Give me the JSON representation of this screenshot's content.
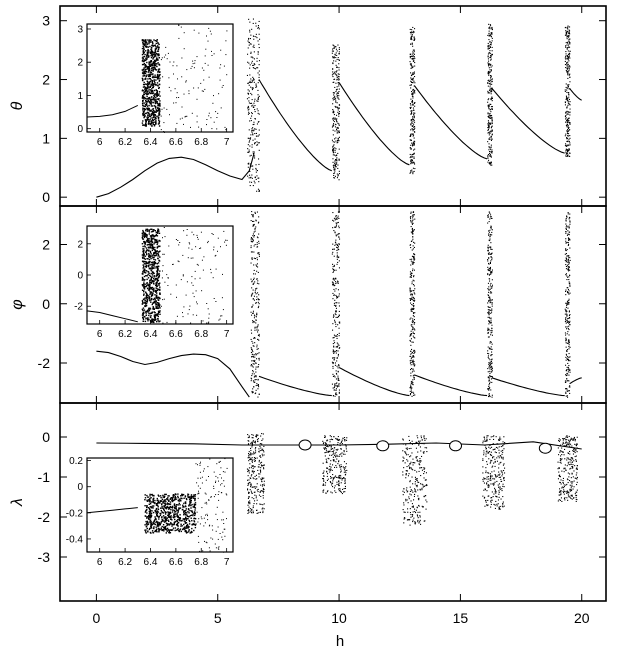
{
  "chart_data": {
    "type": "scatter",
    "xlabel": "h",
    "x_ticks": [
      "0",
      "5",
      "10",
      "15",
      "20"
    ],
    "xlim": [
      -1.5,
      21
    ],
    "grid": false,
    "panels": [
      {
        "id": "theta",
        "ylabel": "θ",
        "ylim": [
          -0.15,
          3.25
        ],
        "y_ticks": [
          "0",
          "1",
          "2",
          "3"
        ],
        "curve": [
          [
            0,
            0
          ],
          [
            0.5,
            0.06
          ],
          [
            1,
            0.17
          ],
          [
            1.5,
            0.3
          ],
          [
            2,
            0.45
          ],
          [
            2.5,
            0.58
          ],
          [
            3,
            0.66
          ],
          [
            3.5,
            0.68
          ],
          [
            4,
            0.64
          ],
          [
            4.5,
            0.55
          ],
          [
            5,
            0.45
          ],
          [
            5.5,
            0.36
          ],
          [
            6,
            0.3
          ],
          [
            6.3,
            0.45
          ],
          [
            6.5,
            0.75
          ]
        ],
        "chaotic_bands": [
          {
            "x": [
              6.2,
              6.7
            ],
            "y": [
              0.1,
              3.05
            ]
          },
          {
            "x": [
              9.7,
              10.0
            ],
            "y": [
              0.3,
              2.6
            ]
          },
          {
            "x": [
              12.9,
              13.1
            ],
            "y": [
              0.4,
              2.9
            ]
          },
          {
            "x": [
              16.1,
              16.3
            ],
            "y": [
              0.55,
              2.95
            ]
          },
          {
            "x": [
              19.3,
              19.5
            ],
            "y": [
              0.7,
              2.95
            ]
          }
        ],
        "branches": [
          {
            "x": [
              6.7,
              9.7
            ],
            "y_start": 2.0,
            "y_end": 0.45
          },
          {
            "x": [
              10.0,
              12.9
            ],
            "y_start": 1.95,
            "y_end": 0.55
          },
          {
            "x": [
              13.1,
              16.1
            ],
            "y_start": 1.9,
            "y_end": 0.65
          },
          {
            "x": [
              16.3,
              19.3
            ],
            "y_start": 1.85,
            "y_end": 0.75
          },
          {
            "x": [
              19.5,
              20.0
            ],
            "y_start": 1.85,
            "y_end": 1.65
          }
        ],
        "inset": {
          "xlim": [
            5.9,
            7.05
          ],
          "ylim": [
            -0.1,
            3.15
          ],
          "x_ticks": [
            "6",
            "6.2",
            "6.4",
            "6.6",
            "6.8",
            "7"
          ],
          "y_ticks": [
            "0",
            "1",
            "2",
            "3"
          ],
          "curve": [
            [
              5.9,
              0.35
            ],
            [
              6.0,
              0.37
            ],
            [
              6.1,
              0.42
            ],
            [
              6.2,
              0.52
            ],
            [
              6.3,
              0.7
            ]
          ],
          "chaotic_band": {
            "x": [
              6.33,
              6.47
            ],
            "y": [
              0.1,
              2.7
            ]
          }
        }
      },
      {
        "id": "phi",
        "ylabel": "φ",
        "ylim": [
          -3.35,
          3.3
        ],
        "y_ticks": [
          "-2",
          "0",
          "2"
        ],
        "curve": [
          [
            0,
            -1.6
          ],
          [
            0.5,
            -1.65
          ],
          [
            1,
            -1.78
          ],
          [
            1.5,
            -1.95
          ],
          [
            2,
            -2.05
          ],
          [
            2.5,
            -1.98
          ],
          [
            3,
            -1.85
          ],
          [
            3.5,
            -1.75
          ],
          [
            4,
            -1.7
          ],
          [
            4.5,
            -1.72
          ],
          [
            5,
            -1.85
          ],
          [
            5.5,
            -2.2
          ],
          [
            6,
            -2.8
          ],
          [
            6.3,
            -3.15
          ]
        ],
        "chaotic_bands": [
          {
            "x": [
              6.35,
              6.7
            ],
            "y": [
              -3.14,
              3.14
            ]
          },
          {
            "x": [
              9.7,
              10.0
            ],
            "y": [
              -3.14,
              3.14
            ]
          },
          {
            "x": [
              12.9,
              13.1
            ],
            "y": [
              -3.14,
              3.14
            ]
          },
          {
            "x": [
              16.1,
              16.3
            ],
            "y": [
              -3.14,
              3.14
            ]
          },
          {
            "x": [
              19.3,
              19.5
            ],
            "y": [
              -3.14,
              3.14
            ]
          }
        ],
        "branches": [
          {
            "x": [
              6.7,
              9.7
            ],
            "y_start": -2.45,
            "y_end": -3.1
          },
          {
            "x": [
              10.0,
              12.9
            ],
            "y_start": -2.15,
            "y_end": -3.1
          },
          {
            "x": [
              13.1,
              16.1
            ],
            "y_start": -2.4,
            "y_end": -3.1
          },
          {
            "x": [
              16.3,
              19.3
            ],
            "y_start": -2.5,
            "y_end": -3.1
          },
          {
            "x": [
              19.5,
              20.0
            ],
            "y_start": -2.7,
            "y_end": -2.5
          }
        ],
        "inset": {
          "xlim": [
            5.9,
            7.05
          ],
          "ylim": [
            -3.14,
            3.14
          ],
          "x_ticks": [
            "6",
            "6.2",
            "6.4",
            "6.6",
            "6.8",
            "7"
          ],
          "y_ticks": [
            "-2",
            "0",
            "2"
          ],
          "curve": [
            [
              5.9,
              -2.3
            ],
            [
              6.0,
              -2.4
            ],
            [
              6.1,
              -2.6
            ],
            [
              6.2,
              -2.8
            ],
            [
              6.3,
              -3.0
            ]
          ],
          "chaotic_band": {
            "x": [
              6.33,
              6.47
            ],
            "y": [
              -3.0,
              3.0
            ]
          }
        }
      },
      {
        "id": "lambda",
        "ylabel": "λ",
        "ylim": [
          -4.1,
          0.85
        ],
        "y_ticks": [
          "-3",
          "-2",
          "-1",
          "0"
        ],
        "curve": [
          [
            0,
            -0.15
          ],
          [
            2,
            -0.16
          ],
          [
            4,
            -0.17
          ],
          [
            6,
            -0.2
          ],
          [
            8,
            -0.2
          ],
          [
            10,
            -0.2
          ],
          [
            12,
            -0.18
          ],
          [
            14,
            -0.15
          ],
          [
            16,
            -0.2
          ],
          [
            18,
            -0.12
          ],
          [
            20,
            -0.3
          ]
        ],
        "bubbles": [
          [
            8.6,
            -0.2
          ],
          [
            11.8,
            -0.22
          ],
          [
            14.8,
            -0.22
          ],
          [
            18.5,
            -0.28
          ]
        ],
        "chaotic_bands": [
          {
            "x": [
              6.2,
              6.9
            ],
            "y": [
              -1.9,
              0.1
            ]
          },
          {
            "x": [
              9.3,
              10.3
            ],
            "y": [
              -1.4,
              0.05
            ]
          },
          {
            "x": [
              12.6,
              13.6
            ],
            "y": [
              -2.2,
              0.05
            ]
          },
          {
            "x": [
              15.9,
              16.8
            ],
            "y": [
              -1.8,
              0.05
            ]
          },
          {
            "x": [
              19.0,
              19.8
            ],
            "y": [
              -1.6,
              0.05
            ]
          }
        ],
        "inset": {
          "xlim": [
            5.9,
            7.05
          ],
          "ylim": [
            -0.5,
            0.22
          ],
          "x_ticks": [
            "6",
            "6.2",
            "6.4",
            "6.6",
            "6.8",
            "7"
          ],
          "y_ticks": [
            "-0.4",
            "-0.2",
            "0",
            "0.2"
          ],
          "curve": [
            [
              5.9,
              -0.2
            ],
            [
              6.0,
              -0.19
            ],
            [
              6.1,
              -0.18
            ],
            [
              6.2,
              -0.17
            ],
            [
              6.3,
              -0.16
            ]
          ],
          "chaotic_band": {
            "x": [
              6.35,
              6.75
            ],
            "y": [
              -0.35,
              -0.05
            ]
          }
        }
      }
    ]
  }
}
